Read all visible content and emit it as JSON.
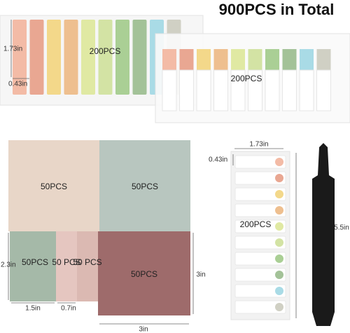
{
  "title": "900PCS in Total",
  "tab_set_1": {
    "label": "200PCS",
    "height": "1.73in",
    "width": "0.43in"
  },
  "tab_set_2": {
    "label": "200PCS"
  },
  "pads": {
    "large_1": "50PCS",
    "large_2": "50PCS",
    "medium": "50PCS",
    "small_1": "50 PCS",
    "small_2": "50 PCS",
    "large_3": "50PCS",
    "height_small": "2.3in",
    "width_medium": "1.5in",
    "width_small": "0.7in",
    "height_large": "3in",
    "width_large": "3in"
  },
  "strip": {
    "width": "1.73in",
    "height": "0.43in",
    "label": "200PCS",
    "length": "5.5in"
  }
}
